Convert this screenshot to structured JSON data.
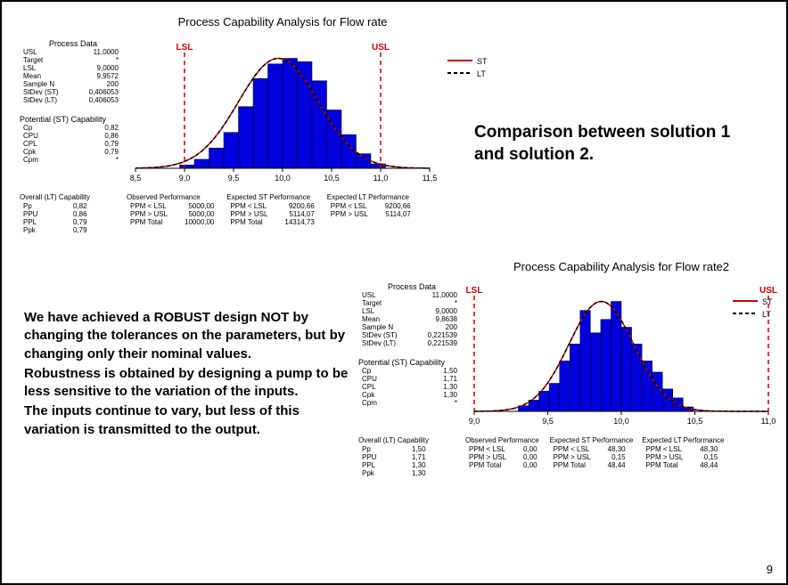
{
  "page_number": "9",
  "heading_right": "Comparison between solution 1 and solution 2.",
  "body_left": "We have achieved a ROBUST design NOT by changing the tolerances on the parameters, but by changing only their nominal values.\nRobustness is obtained by designing a pump to be less sensitive to the variation of the inputs.\nThe inputs continue to vary, but less of this variation is transmitted to the output.",
  "chart1": {
    "title": "Process Capability Analysis for Flow rate",
    "lsl_label": "LSL",
    "usl_label": "USL",
    "legend_st": "ST",
    "legend_lt": "LT",
    "st_color": "#cc0000",
    "lt_color": "#000000",
    "bar_color": "#0000dd",
    "spec_color": "#cc0000",
    "xlim": [
      8.5,
      11.5
    ],
    "xticks": [
      8.5,
      9.0,
      9.5,
      10.0,
      10.5,
      11.0,
      11.5
    ],
    "xtick_labels": [
      "8,5",
      "9,0",
      "9,5",
      "10,0",
      "10,5",
      "11,0",
      "11,5"
    ],
    "lsl": 9.0,
    "usl": 11.0,
    "mean": 9.9572,
    "stdev": 0.406053,
    "bin_width": 0.15,
    "bins_x": [
      8.95,
      9.1,
      9.25,
      9.4,
      9.55,
      9.7,
      9.85,
      10.0,
      10.15,
      10.3,
      10.45,
      10.6,
      10.75,
      10.9
    ],
    "bins_h": [
      0.03,
      0.08,
      0.18,
      0.32,
      0.55,
      0.8,
      0.93,
      0.98,
      0.95,
      0.78,
      0.52,
      0.3,
      0.13,
      0.04
    ],
    "process_data_header": "Process Data",
    "process_data": [
      [
        "USL",
        "11,0000"
      ],
      [
        "Target",
        "*"
      ],
      [
        "LSL",
        "9,0000"
      ],
      [
        "Mean",
        "9,9572"
      ],
      [
        "Sample N",
        "200"
      ],
      [
        "StDev (ST)",
        "0,406053"
      ],
      [
        "StDev (LT)",
        "0,406053"
      ]
    ],
    "potential_header": "Potential (ST) Capability",
    "potential": [
      [
        "Cp",
        "0,82"
      ],
      [
        "CPU",
        "0,86"
      ],
      [
        "CPL",
        "0,79"
      ],
      [
        "Cpk",
        "0,79"
      ],
      [
        "Cpm",
        "*"
      ]
    ],
    "overall_header": "Overall (LT) Capability",
    "overall": [
      [
        "Pp",
        "0,82"
      ],
      [
        "PPU",
        "0,86"
      ],
      [
        "PPL",
        "0,79"
      ],
      [
        "Ppk",
        "0,79"
      ]
    ],
    "perf_blocks": [
      {
        "h": "Observed Performance",
        "rows": [
          [
            "PPM < LSL",
            "5000,00"
          ],
          [
            "PPM > USL",
            "5000,00"
          ],
          [
            "PPM Total",
            "10000,00"
          ]
        ]
      },
      {
        "h": "Expected ST Performance",
        "rows": [
          [
            "PPM < LSL",
            "9200,66"
          ],
          [
            "PPM > USL",
            "5114,07"
          ],
          [
            "PPM Total",
            "14314,73"
          ]
        ]
      },
      {
        "h": "Expected LT Performance",
        "rows": [
          [
            "PPM < LSL",
            "9200,66"
          ],
          [
            "PPM > USL",
            "5114,07"
          ]
        ]
      }
    ]
  },
  "chart2": {
    "title": "Process Capability Analysis for Flow rate2",
    "lsl_label": "LSL",
    "usl_label": "USL",
    "legend_st": "ST",
    "legend_lt": "LT",
    "st_color": "#cc0000",
    "lt_color": "#000000",
    "bar_color": "#0000dd",
    "spec_color": "#cc0000",
    "xlim": [
      9.0,
      11.0
    ],
    "xticks": [
      9.0,
      9.5,
      10.0,
      10.5,
      11.0
    ],
    "xtick_labels": [
      "9,0",
      "9,5",
      "10,0",
      "10,5",
      "11,0"
    ],
    "lsl": 9.0,
    "usl": 11.0,
    "mean": 9.8638,
    "stdev": 0.221539,
    "bin_width": 0.07,
    "bins_x": [
      9.3,
      9.37,
      9.44,
      9.51,
      9.58,
      9.65,
      9.72,
      9.79,
      9.86,
      9.93,
      10.0,
      10.07,
      10.14,
      10.21,
      10.28,
      10.35,
      10.42
    ],
    "bins_h": [
      0.05,
      0.1,
      0.18,
      0.25,
      0.45,
      0.6,
      0.9,
      0.7,
      0.82,
      0.98,
      0.75,
      0.6,
      0.45,
      0.35,
      0.2,
      0.12,
      0.04
    ],
    "process_data_header": "Process Data",
    "process_data": [
      [
        "USL",
        "11,0000"
      ],
      [
        "Target",
        "*"
      ],
      [
        "LSL",
        "9,0000"
      ],
      [
        "Mean",
        "9,8638"
      ],
      [
        "Sample N",
        "200"
      ],
      [
        "StDev (ST)",
        "0,221539"
      ],
      [
        "StDev (LT)",
        "0,221539"
      ]
    ],
    "potential_header": "Potential (ST) Capability",
    "potential": [
      [
        "Cp",
        "1,50"
      ],
      [
        "CPU",
        "1,71"
      ],
      [
        "CPL",
        "1,30"
      ],
      [
        "Cpk",
        "1,30"
      ],
      [
        "Cpm",
        "*"
      ]
    ],
    "overall_header": "Overall (LT) Capability",
    "overall": [
      [
        "Pp",
        "1,50"
      ],
      [
        "PPU",
        "1,71"
      ],
      [
        "PPL",
        "1,30"
      ],
      [
        "Ppk",
        "1,30"
      ]
    ],
    "perf_blocks": [
      {
        "h": "Observed Performance",
        "rows": [
          [
            "PPM < LSL",
            "0,00"
          ],
          [
            "PPM > USL",
            "0,00"
          ],
          [
            "PPM Total",
            "0,00"
          ]
        ]
      },
      {
        "h": "Expected ST Performance",
        "rows": [
          [
            "PPM < LSL",
            "48,30"
          ],
          [
            "PPM > USL",
            "0,15"
          ],
          [
            "PPM Total",
            "48,44"
          ]
        ]
      },
      {
        "h": "Expected LT Performance",
        "rows": [
          [
            "PPM < LSL",
            "48,30"
          ],
          [
            "PPM > USL",
            "0,15"
          ],
          [
            "PPM Total",
            "48,44"
          ]
        ]
      }
    ]
  }
}
